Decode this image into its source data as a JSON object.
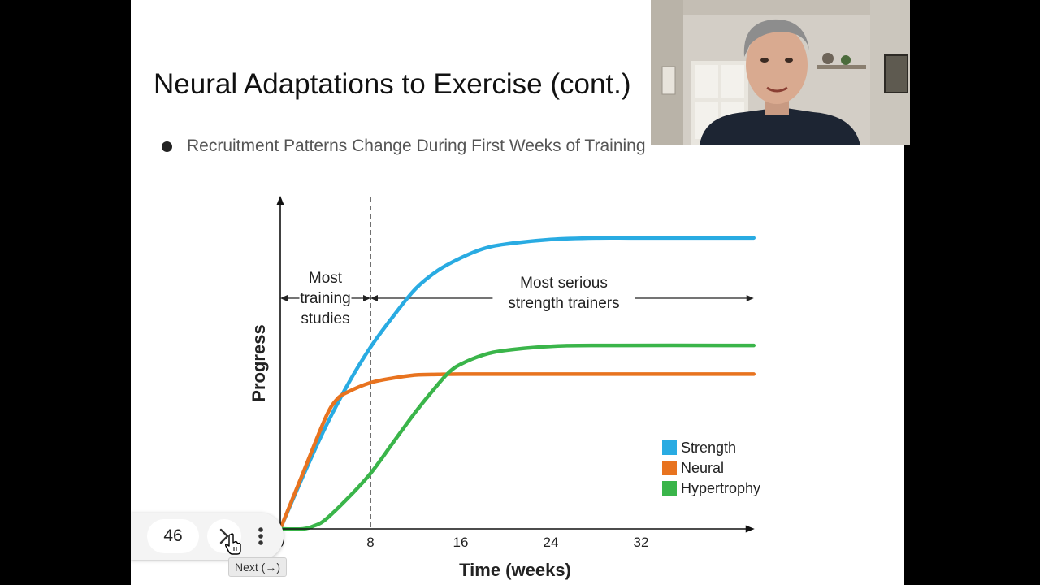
{
  "slide": {
    "title": "Neural Adaptations to Exercise (cont.)",
    "bullet": "Recruitment Patterns Change During First Weeks of Training"
  },
  "chart_data": {
    "type": "line",
    "xlabel": "Time (weeks)",
    "ylabel": "Progress",
    "x_ticks": [
      "0",
      "8",
      "16",
      "24",
      "32"
    ],
    "xlim": [
      0,
      42
    ],
    "ylim": [
      0,
      1
    ],
    "y_axis_values_shown": false,
    "grid": false,
    "legend_position": "bottom-right",
    "marker_line": {
      "x": 8,
      "style": "dashed"
    },
    "annotations": [
      {
        "text_lines": [
          "Most",
          "training",
          "studies"
        ],
        "x_range": [
          0,
          8
        ]
      },
      {
        "text_lines": [
          "Most serious",
          "strength trainers"
        ],
        "x_range": [
          8,
          42
        ]
      }
    ],
    "series": [
      {
        "name": "Strength",
        "color": "#29abe2",
        "points": [
          [
            0,
            0
          ],
          [
            2,
            0.17
          ],
          [
            4,
            0.33
          ],
          [
            6,
            0.47
          ],
          [
            8,
            0.59
          ],
          [
            10,
            0.69
          ],
          [
            12,
            0.78
          ],
          [
            14,
            0.84
          ],
          [
            16,
            0.88
          ],
          [
            18,
            0.91
          ],
          [
            20,
            0.925
          ],
          [
            24,
            0.94
          ],
          [
            28,
            0.945
          ],
          [
            32,
            0.945
          ],
          [
            42,
            0.945
          ]
        ]
      },
      {
        "name": "Neural",
        "color": "#e8731f",
        "points": [
          [
            0,
            0
          ],
          [
            2,
            0.18
          ],
          [
            4,
            0.36
          ],
          [
            5,
            0.42
          ],
          [
            6,
            0.445
          ],
          [
            8,
            0.475
          ],
          [
            10,
            0.49
          ],
          [
            12,
            0.5
          ],
          [
            14,
            0.502
          ],
          [
            16,
            0.503
          ],
          [
            24,
            0.503
          ],
          [
            42,
            0.503
          ]
        ]
      },
      {
        "name": "Hypertrophy",
        "color": "#3ab54a",
        "points": [
          [
            0,
            0
          ],
          [
            2,
            0
          ],
          [
            3,
            0.01
          ],
          [
            4,
            0.03
          ],
          [
            6,
            0.1
          ],
          [
            8,
            0.18
          ],
          [
            10,
            0.28
          ],
          [
            12,
            0.38
          ],
          [
            14,
            0.47
          ],
          [
            15,
            0.51
          ],
          [
            16,
            0.535
          ],
          [
            18,
            0.565
          ],
          [
            20,
            0.58
          ],
          [
            24,
            0.593
          ],
          [
            28,
            0.596
          ],
          [
            42,
            0.596
          ]
        ]
      }
    ]
  },
  "controls": {
    "slide_number": "46",
    "tooltip": "Next (→)"
  },
  "icons": {
    "next": "chevron-right-icon",
    "more": "more-vert-icon",
    "cursor": "hand-pointer-icon"
  },
  "colors": {
    "slide_background": "#ffffff",
    "strength": "#29abe2",
    "neural": "#e8731f",
    "hypertrophy": "#3ab54a"
  }
}
